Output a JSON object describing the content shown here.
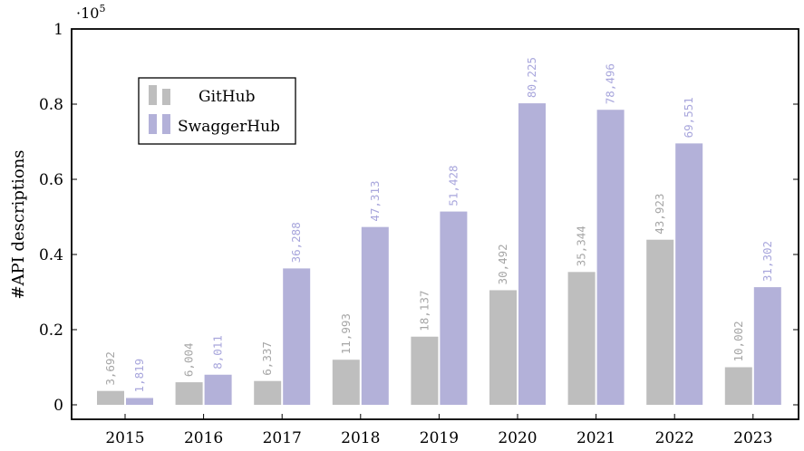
{
  "chart_data": {
    "type": "bar",
    "categories": [
      "2015",
      "2016",
      "2017",
      "2018",
      "2019",
      "2020",
      "2021",
      "2022",
      "2023"
    ],
    "series": [
      {
        "name": "GitHub",
        "color": "#bebebe",
        "label_color": "#a6a6a6",
        "values": [
          3692,
          6004,
          6337,
          11993,
          18137,
          30492,
          35344,
          43923,
          10002
        ],
        "value_labels": [
          "3,692",
          "6,004",
          "6,337",
          "11,993",
          "18,137",
          "30,492",
          "35,344",
          "43,923",
          "10,002"
        ]
      },
      {
        "name": "SwaggerHub",
        "color": "#b3b1d9",
        "label_color": "#a8a6dc",
        "values": [
          1819,
          8011,
          36288,
          47313,
          51428,
          80225,
          78496,
          69551,
          31302
        ],
        "value_labels": [
          "1,819",
          "8,011",
          "36,288",
          "47,313",
          "51,428",
          "80,225",
          "78,496",
          "69,551",
          "31,302"
        ]
      }
    ],
    "ylabel": "#API descriptions",
    "xlabel": "",
    "ylim": [
      0,
      100000
    ],
    "yticks": [
      0,
      20000,
      40000,
      60000,
      80000,
      100000
    ],
    "ytick_labels": [
      "0",
      "0.2",
      "0.4",
      "0.6",
      "0.8",
      "1"
    ],
    "y_multiplier_base": "·10",
    "y_multiplier_exp": "5",
    "legend_position": "top-left",
    "grid": false
  }
}
